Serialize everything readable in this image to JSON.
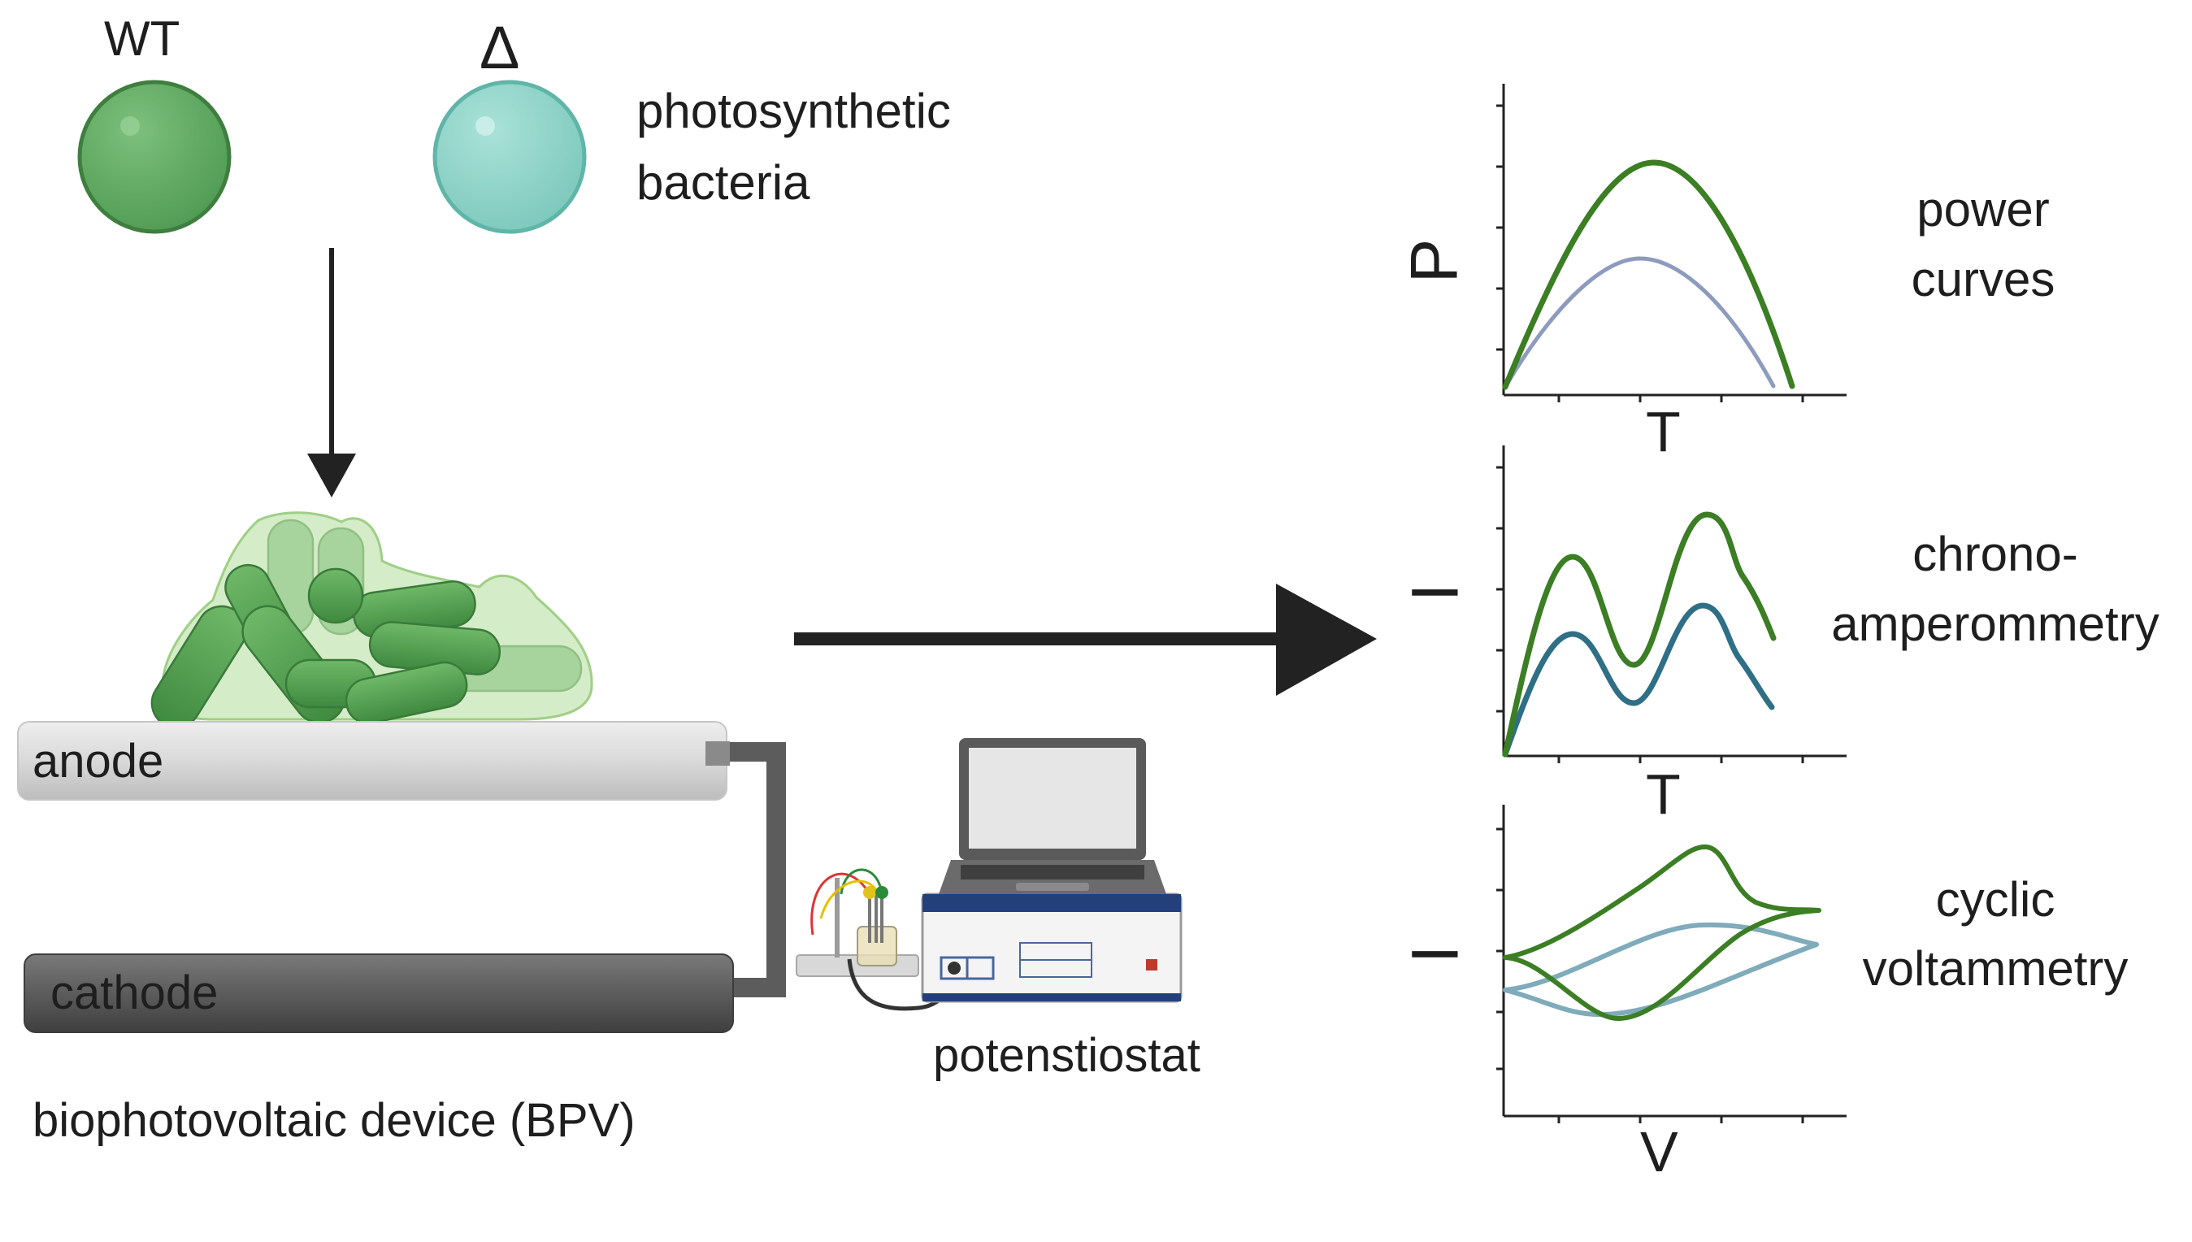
{
  "labels": {
    "wt": "WT",
    "delta": "Δ",
    "bacteria_line1": "photosynthetic",
    "bacteria_line2": "bacteria",
    "anode": "anode",
    "cathode": "cathode",
    "device": "biophotovoltaic device (BPV)",
    "potentiostat": "potenstiostat"
  },
  "charts": {
    "power": {
      "ylabel": "P",
      "xlabel": "T",
      "title_line1": "power",
      "title_line2": "curves"
    },
    "chrono": {
      "ylabel": "I",
      "xlabel": "T",
      "title_line1": "chrono-",
      "title_line2": "amperommetry"
    },
    "cv": {
      "ylabel": "I",
      "xlabel": "V",
      "title_line1": "cyclic",
      "title_line2": "voltammetry"
    }
  },
  "colors": {
    "wt_green": "#3b7e24",
    "mutant_power": "#8d9bbd",
    "mutant_chrono": "#2f6f86",
    "mutant_cv": "#7fabbb",
    "bacteria_wt": "#5daa5f",
    "bacteria_mutant": "#8fd3c8",
    "arrow": "#222222"
  }
}
